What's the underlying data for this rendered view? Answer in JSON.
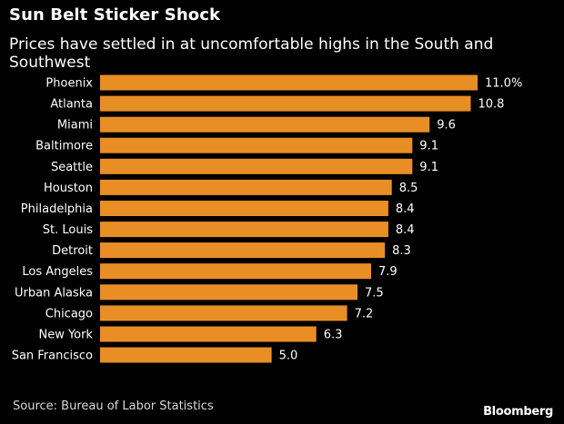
{
  "header": {
    "title": "Sun Belt Sticker Shock",
    "subtitle": "Prices have settled in at uncomfortable highs in the South and Southwest"
  },
  "footer": {
    "source": "Source: Bureau of Labor Statistics",
    "brand": "Bloomberg"
  },
  "colors": {
    "background": "#000000",
    "bar": "#e88e25",
    "text": "#ffffff"
  },
  "chart_data": {
    "type": "bar",
    "orientation": "horizontal",
    "title": "Sun Belt Sticker Shock",
    "subtitle": "Prices have settled in at uncomfortable highs in the South and Southwest",
    "categories": [
      "Phoenix",
      "Atlanta",
      "Miami",
      "Baltimore",
      "Seattle",
      "Houston",
      "Philadelphia",
      "St. Louis",
      "Detroit",
      "Los Angeles",
      "Urban Alaska",
      "Chicago",
      "New York",
      "San Francisco"
    ],
    "values": [
      11.0,
      10.8,
      9.6,
      9.1,
      9.1,
      8.5,
      8.4,
      8.4,
      8.3,
      7.9,
      7.5,
      7.2,
      6.3,
      5.0
    ],
    "value_labels": [
      "11.0%",
      "10.8",
      "9.6",
      "9.1",
      "9.1",
      "8.5",
      "8.4",
      "8.4",
      "8.3",
      "7.9",
      "7.5",
      "7.2",
      "6.3",
      "5.0"
    ],
    "xlim": [
      0,
      11.0
    ],
    "grid": false,
    "legend": "none"
  }
}
